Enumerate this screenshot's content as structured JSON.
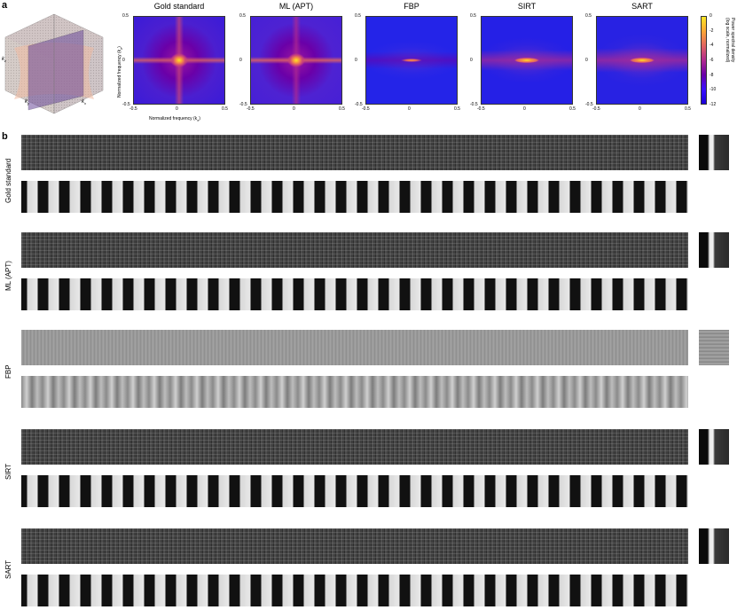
{
  "panel_a": {
    "letter": "a",
    "cube_labels": {
      "kz": "k",
      "kz_sub": "z",
      "ky": "k",
      "ky_sub": "y",
      "kx": "k",
      "kx_sub": "x"
    },
    "spectrum_titles": [
      "Gold standard",
      "ML (APT)",
      "FBP",
      "SIRT",
      "SART"
    ],
    "x_ticks": [
      "-0.5",
      "0",
      "0.5"
    ],
    "y_ticks": [
      "0.5",
      "0",
      "-0.5"
    ],
    "xlabel": "Normalized frequency (k",
    "xlabel_sub": "x",
    "ylabel": "Normalized frequency (k",
    "ylabel_sub": "z",
    "colorbar": {
      "ticks": [
        "0",
        "-2",
        "-4",
        "-6",
        "-8",
        "-10",
        "-12"
      ],
      "label_line1": "Power spectral density",
      "label_line2": "(log scale, normalized)",
      "colors": [
        "#fbe726",
        "#fca636",
        "#e16462",
        "#b12a90",
        "#6a00a8",
        "#3b10ff",
        "#1a00d9"
      ]
    },
    "spectra_style": [
      {
        "name": "gold",
        "bg": "#3a1bd8",
        "core": "#f6a43b"
      },
      {
        "name": "ml",
        "bg": "#4620d6",
        "core": "#f3a23c"
      },
      {
        "name": "fbp",
        "bg": "#2424e8",
        "core": "#e0575e"
      },
      {
        "name": "sirt",
        "bg": "#2520e6",
        "core": "#f79b3a"
      },
      {
        "name": "sart",
        "bg": "#2822e3",
        "core": "#f5a03b"
      }
    ]
  },
  "panel_b": {
    "letter": "b",
    "rows": [
      {
        "label": "Gold standard",
        "style": "dark"
      },
      {
        "label": "ML (APT)",
        "style": "dark"
      },
      {
        "label": "FBP",
        "style": "gray"
      },
      {
        "label": "SIRT",
        "style": "dark"
      },
      {
        "label": "SART",
        "style": "dark"
      }
    ]
  }
}
